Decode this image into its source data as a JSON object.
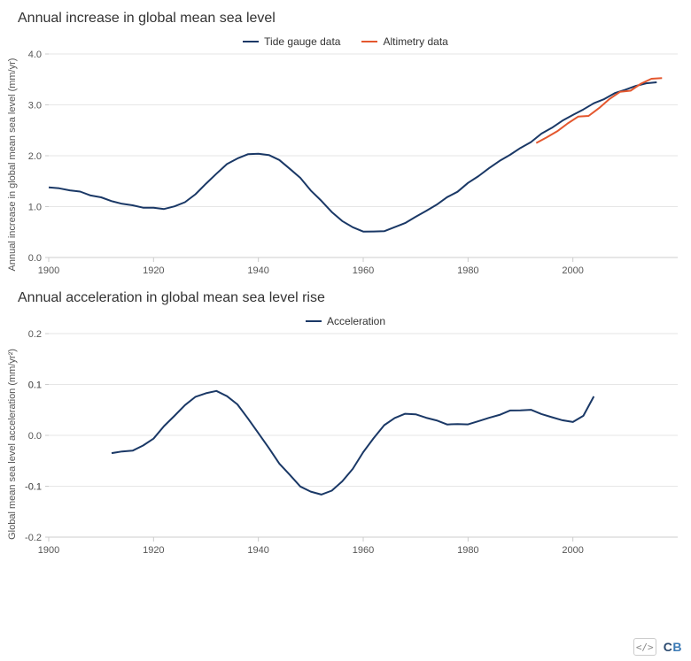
{
  "chart1": {
    "type": "line",
    "title": "Annual increase in global mean sea level",
    "ylabel": "Annual increase in global mean sea level (mm/yr)",
    "xlim": [
      1900,
      2020
    ],
    "ylim": [
      0.0,
      4.0
    ],
    "xticks": [
      1900,
      1920,
      1940,
      1960,
      1980,
      2000
    ],
    "yticks": [
      0.0,
      1.0,
      2.0,
      3.0,
      4.0
    ],
    "background_color": "#ffffff",
    "grid_color": "#e6e6e6",
    "axis_color": "#cccccc",
    "title_fontsize": 16,
    "label_fontsize": 11,
    "line_width": 2,
    "legend": [
      {
        "label": "Tide gauge data",
        "color": "#1a3866"
      },
      {
        "label": "Altimetry data",
        "color": "#e4572e"
      }
    ],
    "series": {
      "tide_gauge": {
        "color": "#1a3866",
        "x": [
          1900,
          1902,
          1904,
          1906,
          1908,
          1910,
          1912,
          1914,
          1916,
          1918,
          1920,
          1922,
          1924,
          1926,
          1928,
          1930,
          1932,
          1934,
          1936,
          1938,
          1940,
          1942,
          1944,
          1946,
          1948,
          1950,
          1952,
          1954,
          1956,
          1958,
          1960,
          1962,
          1964,
          1966,
          1968,
          1970,
          1972,
          1974,
          1976,
          1978,
          1980,
          1982,
          1984,
          1986,
          1988,
          1990,
          1992,
          1994,
          1996,
          1998,
          2000,
          2002,
          2004,
          2006,
          2008,
          2010,
          2012,
          2014,
          2016
        ],
        "y": [
          1.38,
          1.35,
          1.32,
          1.28,
          1.23,
          1.18,
          1.12,
          1.06,
          1.02,
          0.98,
          0.96,
          0.96,
          1.0,
          1.1,
          1.25,
          1.45,
          1.65,
          1.82,
          1.95,
          2.02,
          2.05,
          2.02,
          1.92,
          1.75,
          1.55,
          1.32,
          1.1,
          0.9,
          0.72,
          0.6,
          0.52,
          0.5,
          0.52,
          0.58,
          0.68,
          0.8,
          0.92,
          1.05,
          1.18,
          1.3,
          1.45,
          1.6,
          1.75,
          1.9,
          2.03,
          2.15,
          2.28,
          2.42,
          2.55,
          2.68,
          2.8,
          2.92,
          3.03,
          3.13,
          3.22,
          3.3,
          3.36,
          3.42,
          3.45
        ]
      },
      "altimetry": {
        "color": "#e4572e",
        "x": [
          1993,
          1995,
          1997,
          1999,
          2001,
          2003,
          2005,
          2007,
          2009,
          2011,
          2013,
          2015,
          2017
        ],
        "y": [
          2.25,
          2.35,
          2.48,
          2.62,
          2.78,
          2.78,
          2.95,
          3.12,
          3.25,
          3.28,
          3.4,
          3.52,
          3.52
        ]
      }
    }
  },
  "chart2": {
    "type": "line",
    "title": "Annual acceleration in global mean sea level rise",
    "ylabel": "Global mean sea level acceleration (mm/yr²)",
    "xlim": [
      1900,
      2020
    ],
    "ylim": [
      -0.2,
      0.2
    ],
    "xticks": [
      1900,
      1920,
      1940,
      1960,
      1980,
      2000
    ],
    "yticks": [
      -0.2,
      -0.1,
      -0.1,
      0.0,
      0.1,
      0.1,
      0.2
    ],
    "ytick_labels": [
      "-0.2",
      "-0.1",
      "-0.1",
      "0.0",
      "0.1",
      "0.1",
      "0.2"
    ],
    "background_color": "#ffffff",
    "grid_color": "#e6e6e6",
    "axis_color": "#cccccc",
    "title_fontsize": 16,
    "label_fontsize": 11,
    "line_width": 2,
    "legend": [
      {
        "label": "Acceleration",
        "color": "#1a3866"
      }
    ],
    "series": {
      "accel": {
        "color": "#1a3866",
        "x": [
          1912,
          1914,
          1916,
          1918,
          1920,
          1922,
          1924,
          1926,
          1928,
          1930,
          1932,
          1934,
          1936,
          1938,
          1940,
          1942,
          1944,
          1946,
          1948,
          1950,
          1952,
          1954,
          1956,
          1958,
          1960,
          1962,
          1964,
          1966,
          1968,
          1970,
          1972,
          1974,
          1976,
          1978,
          1980,
          1982,
          1984,
          1986,
          1988,
          1990,
          1992,
          1994,
          1996,
          1998,
          2000,
          2002,
          2004
        ],
        "y": [
          -0.035,
          -0.033,
          -0.03,
          -0.022,
          -0.005,
          0.018,
          0.04,
          0.06,
          0.075,
          0.083,
          0.085,
          0.078,
          0.06,
          0.035,
          0.005,
          -0.025,
          -0.055,
          -0.08,
          -0.1,
          -0.112,
          -0.115,
          -0.108,
          -0.09,
          -0.065,
          -0.035,
          -0.005,
          0.018,
          0.035,
          0.043,
          0.042,
          0.036,
          0.028,
          0.022,
          0.02,
          0.022,
          0.028,
          0.035,
          0.042,
          0.048,
          0.05,
          0.048,
          0.042,
          0.035,
          0.03,
          0.028,
          0.038,
          0.078
        ]
      }
    }
  },
  "footer": {
    "embed_label": "</>",
    "brand_c": "C",
    "brand_b": "B"
  }
}
